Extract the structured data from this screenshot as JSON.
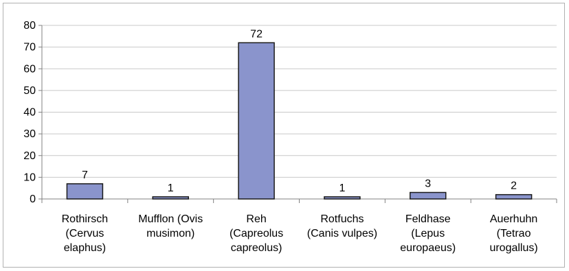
{
  "chart_data": {
    "type": "bar",
    "categories": [
      [
        "Rothirsch",
        "(Cervus",
        "elaphus)"
      ],
      [
        "Mufflon (Ovis",
        "musimon)"
      ],
      [
        "Reh",
        "(Capreolus",
        "capreolus)"
      ],
      [
        "Rotfuchs",
        "(Canis vulpes)"
      ],
      [
        "Feldhase",
        "(Lepus",
        "europaeus)"
      ],
      [
        "Auerhuhn",
        "(Tetrao",
        "urogallus)"
      ]
    ],
    "values": [
      7,
      1,
      72,
      1,
      3,
      2
    ],
    "data_labels": [
      "7",
      "1",
      "72",
      "1",
      "3",
      "2"
    ],
    "ylim": [
      0,
      80
    ],
    "yticks": [
      "0",
      "10",
      "20",
      "30",
      "40",
      "50",
      "60",
      "70",
      "80"
    ],
    "grid": true,
    "legend": "none",
    "title": "",
    "xlabel": "",
    "ylabel": "",
    "colors": {
      "bar_fill": "#8a94cc",
      "bar_stroke": "#1a1a1a",
      "grid": "#c8c8c8",
      "axis": "#808080"
    }
  }
}
